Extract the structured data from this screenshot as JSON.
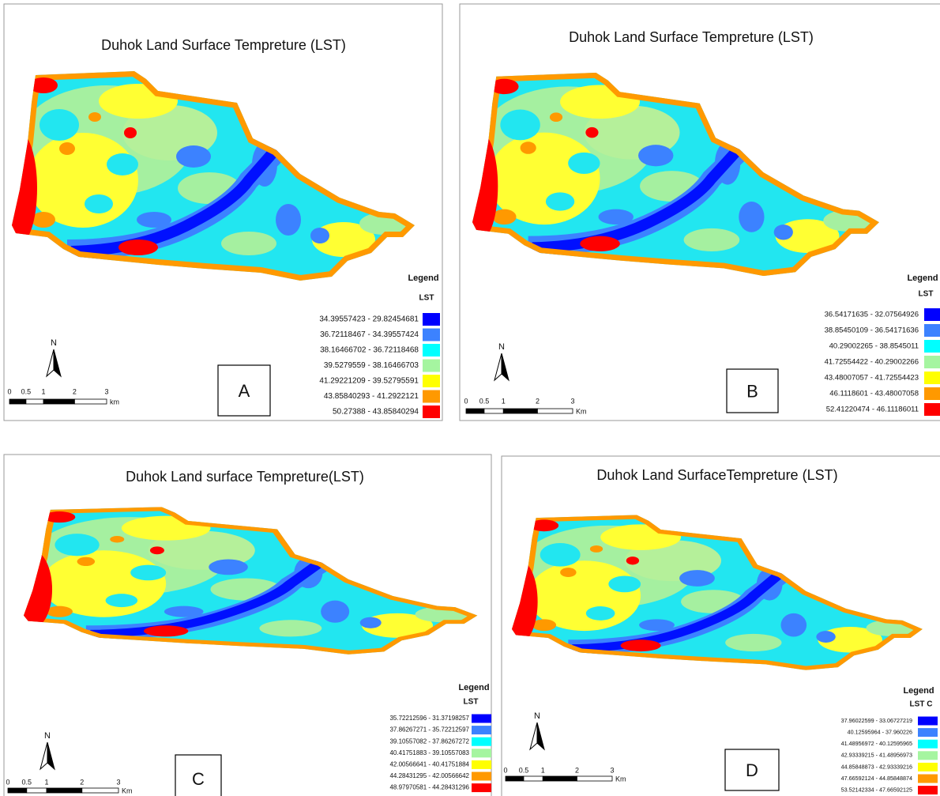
{
  "panels": [
    {
      "title": "Duhok Land Surface Tempreture (LST)",
      "letter": "A",
      "north": "N",
      "scale_labels": [
        "0",
        "0.5",
        "1",
        "2",
        "3",
        "km"
      ],
      "legend": {
        "title": "Legend",
        "subtitle": "LST",
        "items": [
          {
            "label": "34.39557423 - 29.82454681",
            "color": "#0000ff"
          },
          {
            "label": "36.72118467 - 34.39557424",
            "color": "#3c82ff"
          },
          {
            "label": "38.16466702 - 36.72118468",
            "color": "#00ffff"
          },
          {
            "label": "39.5279559 - 38.16466703",
            "color": "#a5f5a0"
          },
          {
            "label": "41.29221209 - 39.52795591",
            "color": "#ffff00"
          },
          {
            "label": "43.85840293 - 41.2922121",
            "color": "#ff9900"
          },
          {
            "label": "50.27388 - 43.85840294",
            "color": "#ff0000"
          }
        ]
      }
    },
    {
      "title": "Duhok Land Surface Tempreture (LST)",
      "letter": "B",
      "north": "N",
      "scale_labels": [
        "0",
        "0.5",
        "1",
        "2",
        "3",
        "Km"
      ],
      "legend": {
        "title": "Legend",
        "subtitle": "LST",
        "items": [
          {
            "label": "36.54171635 - 32.07564926",
            "color": "#0000ff"
          },
          {
            "label": "38.85450109 - 36.54171636",
            "color": "#3c82ff"
          },
          {
            "label": "40.29002265 - 38.8545011",
            "color": "#00ffff"
          },
          {
            "label": "41.72554422 - 40.29002266",
            "color": "#a5f5a0"
          },
          {
            "label": "43.48007057 - 41.72554423",
            "color": "#ffff00"
          },
          {
            "label": "46.1118601 - 43.48007058",
            "color": "#ff9900"
          },
          {
            "label": "52.41220474 - 46.11186011",
            "color": "#ff0000"
          }
        ]
      }
    },
    {
      "title": "Duhok Land surface Tempreture(LST)",
      "letter": "C",
      "north": "N",
      "scale_labels": [
        "0",
        "0.5",
        "1",
        "2",
        "3",
        "Km"
      ],
      "legend": {
        "title": "Legend",
        "subtitle": "LST",
        "items": [
          {
            "label": "35.72212596 - 31.37198257",
            "color": "#0000ff"
          },
          {
            "label": "37.86267271 - 35.72212597",
            "color": "#3c82ff"
          },
          {
            "label": "39.10557082 - 37.86267272",
            "color": "#00ffff"
          },
          {
            "label": "40.41751883 - 39.10557083",
            "color": "#a5f5a0"
          },
          {
            "label": "42.00566641 - 40.41751884",
            "color": "#ffff00"
          },
          {
            "label": "44.28431295 - 42.00566642",
            "color": "#ff9900"
          },
          {
            "label": "48.97970581 - 44.28431296",
            "color": "#ff0000"
          }
        ]
      }
    },
    {
      "title": "Duhok Land SurfaceTempreture (LST)",
      "letter": "D",
      "north": "N",
      "scale_labels": [
        "0",
        "0.5",
        "1",
        "2",
        "3",
        "Km"
      ],
      "legend": {
        "title": "Legend",
        "subtitle": "LST C",
        "items": [
          {
            "label": "37.96022599 - 33.06727219",
            "color": "#0000ff"
          },
          {
            "label": "40.12595964 - 37.960226",
            "color": "#3c82ff"
          },
          {
            "label": "41.48956972 - 40.12595965",
            "color": "#00ffff"
          },
          {
            "label": "42.93339215 - 41.48956973",
            "color": "#a5f5a0"
          },
          {
            "label": "44.85848873 - 42.93339216",
            "color": "#ffff00"
          },
          {
            "label": "47.66592124 - 44.85848874",
            "color": "#ff9900"
          },
          {
            "label": "53.52142334 - 47.66592125",
            "color": "#ff0000"
          }
        ]
      }
    }
  ]
}
